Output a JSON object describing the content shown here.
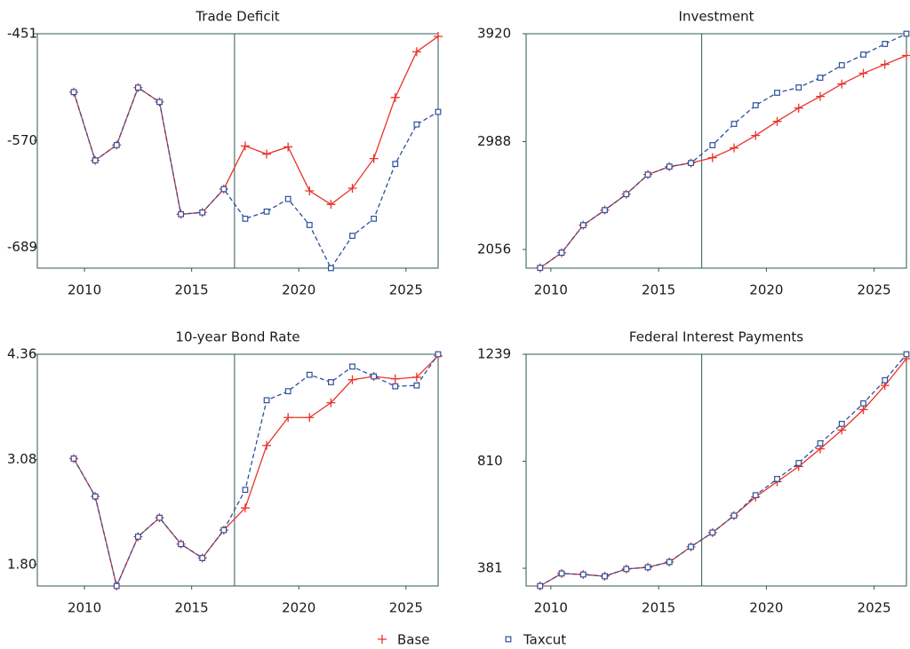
{
  "chart_data": [
    {
      "type": "line",
      "title": "Trade Deficit",
      "x": [
        2009.5,
        2010.5,
        2011.5,
        2012.5,
        2013.5,
        2014.5,
        2015.5,
        2016.5,
        2017.5,
        2018.5,
        2019.5,
        2020.5,
        2021.5,
        2022.5,
        2023.5,
        2024.5,
        2025.5,
        2026.5
      ],
      "xlim": [
        2007.8,
        2026.5
      ],
      "xticks": [
        2010,
        2015,
        2020,
        2025
      ],
      "ylim": [
        -712,
        -451
      ],
      "yticks": [
        -689,
        -570,
        -451
      ],
      "vline": 2017,
      "grid": false,
      "series": [
        {
          "name": "Base",
          "color": "#e8332a",
          "values": [
            -516,
            -592,
            -575,
            -511,
            -527,
            -652,
            -650,
            -624,
            -576,
            -585,
            -577,
            -626,
            -641,
            -623,
            -590,
            -522,
            -471,
            -454
          ]
        },
        {
          "name": "Taxcut",
          "color": "#2e4f9c",
          "values": [
            -516,
            -592,
            -575,
            -511,
            -527,
            -652,
            -650,
            -624,
            -657,
            -649,
            -635,
            -664,
            -712,
            -676,
            -657,
            -596,
            -552,
            -538
          ]
        }
      ]
    },
    {
      "type": "line",
      "title": "Investment",
      "x": [
        2009.5,
        2010.5,
        2011.5,
        2012.5,
        2013.5,
        2014.5,
        2015.5,
        2016.5,
        2017.5,
        2018.5,
        2019.5,
        2020.5,
        2021.5,
        2022.5,
        2023.5,
        2024.5,
        2025.5,
        2026.5
      ],
      "xlim": [
        2008.85,
        2026.5
      ],
      "xticks": [
        2010,
        2015,
        2020,
        2025
      ],
      "ylim": [
        1895,
        3920
      ],
      "yticks": [
        2056,
        2988,
        3920
      ],
      "vline": 2017,
      "grid": false,
      "series": [
        {
          "name": "Base",
          "color": "#e8332a",
          "values": [
            1897,
            2028,
            2266,
            2396,
            2534,
            2703,
            2772,
            2803,
            2849,
            2933,
            3041,
            3163,
            3278,
            3378,
            3486,
            3578,
            3655,
            3732
          ]
        },
        {
          "name": "Taxcut",
          "color": "#2e4f9c",
          "values": [
            1897,
            2028,
            2266,
            2396,
            2534,
            2703,
            2772,
            2803,
            2957,
            3141,
            3302,
            3410,
            3456,
            3540,
            3648,
            3740,
            3832,
            3920
          ]
        }
      ]
    },
    {
      "type": "line",
      "title": "10-year Bond Rate",
      "x": [
        2009.5,
        2010.5,
        2011.5,
        2012.5,
        2013.5,
        2014.5,
        2015.5,
        2016.5,
        2017.5,
        2018.5,
        2019.5,
        2020.5,
        2021.5,
        2022.5,
        2023.5,
        2024.5,
        2025.5,
        2026.5
      ],
      "xlim": [
        2007.8,
        2026.5
      ],
      "xticks": [
        2010,
        2015,
        2020,
        2025
      ],
      "ylim": [
        1.54,
        4.36
      ],
      "yticks": [
        {
          "value": 1.8,
          "label": "1.80"
        },
        3.08,
        4.36
      ],
      "vline": 2017,
      "grid": false,
      "series": [
        {
          "name": "Base",
          "color": "#e8332a",
          "values": [
            3.09,
            2.63,
            1.54,
            2.14,
            2.37,
            2.05,
            1.88,
            2.22,
            2.49,
            3.25,
            3.59,
            3.59,
            3.77,
            4.05,
            4.09,
            4.06,
            4.08,
            4.34
          ]
        },
        {
          "name": "Taxcut",
          "color": "#2e4f9c",
          "values": [
            3.09,
            2.63,
            1.54,
            2.14,
            2.37,
            2.05,
            1.88,
            2.22,
            2.71,
            3.8,
            3.91,
            4.11,
            4.02,
            4.21,
            4.09,
            3.97,
            3.98,
            4.36
          ]
        }
      ]
    },
    {
      "type": "line",
      "title": "Federal Interest Payments",
      "x": [
        2009.5,
        2010.5,
        2011.5,
        2012.5,
        2013.5,
        2014.5,
        2015.5,
        2016.5,
        2017.5,
        2018.5,
        2019.5,
        2020.5,
        2021.5,
        2022.5,
        2023.5,
        2024.5,
        2025.5,
        2026.5
      ],
      "xlim": [
        2008.85,
        2026.5
      ],
      "xticks": [
        2010,
        2015,
        2020,
        2025
      ],
      "ylim": [
        310,
        1239
      ],
      "yticks": [
        381,
        810,
        1239
      ],
      "vline": 2017,
      "grid": false,
      "series": [
        {
          "name": "Base",
          "color": "#e8332a",
          "values": [
            310,
            360,
            356,
            349,
            378,
            385,
            406,
            467,
            524,
            592,
            667,
            728,
            789,
            860,
            935,
            1017,
            1114,
            1221
          ]
        },
        {
          "name": "Taxcut",
          "color": "#2e4f9c",
          "values": [
            310,
            360,
            356,
            349,
            378,
            385,
            406,
            467,
            524,
            592,
            674,
            739,
            803,
            882,
            960,
            1042,
            1135,
            1239
          ]
        }
      ]
    }
  ]
}
